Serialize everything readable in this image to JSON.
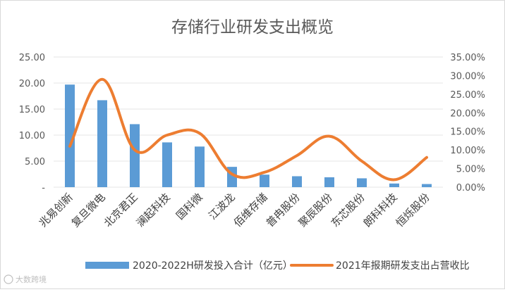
{
  "chart_data": {
    "type": "bar+line",
    "title": "存储行业研发支出概览",
    "categories": [
      "兆易创新",
      "复旦微电",
      "北京君正",
      "澜起科技",
      "国科微",
      "江波龙",
      "佰维存储",
      "普冉股份",
      "聚辰股份",
      "东芯股份",
      "朗科科技",
      "恒烁股份"
    ],
    "series": [
      {
        "name": "2020-2022H研发投入合计（亿元）",
        "type": "bar",
        "axis": "left",
        "color": "#5b9bd5",
        "values": [
          19.7,
          16.7,
          12.1,
          8.6,
          7.8,
          3.9,
          2.4,
          2.1,
          1.9,
          1.7,
          0.7,
          0.6
        ]
      },
      {
        "name": "2021年报期研发支出占营收比",
        "type": "line",
        "axis": "right",
        "color": "#ed7d31",
        "values": [
          0.11,
          0.29,
          0.1,
          0.14,
          0.145,
          0.035,
          0.04,
          0.085,
          0.137,
          0.07,
          0.02,
          0.08
        ]
      }
    ],
    "y_left": {
      "range": [
        0,
        25
      ],
      "ticks": [
        0,
        5,
        10,
        15,
        20,
        25
      ],
      "tick_labels": [
        "-",
        "5.00",
        "10.00",
        "15.00",
        "20.00",
        "25.00"
      ]
    },
    "y_right": {
      "range": [
        0,
        0.35
      ],
      "ticks": [
        0,
        0.05,
        0.1,
        0.15,
        0.2,
        0.25,
        0.3,
        0.35
      ],
      "tick_labels": [
        "0.00%",
        "5.00%",
        "10.00%",
        "15.00%",
        "20.00%",
        "25.00%",
        "30.00%",
        "35.00%"
      ]
    },
    "grid": true,
    "legend_position": "bottom"
  },
  "watermark": "大数跨境"
}
